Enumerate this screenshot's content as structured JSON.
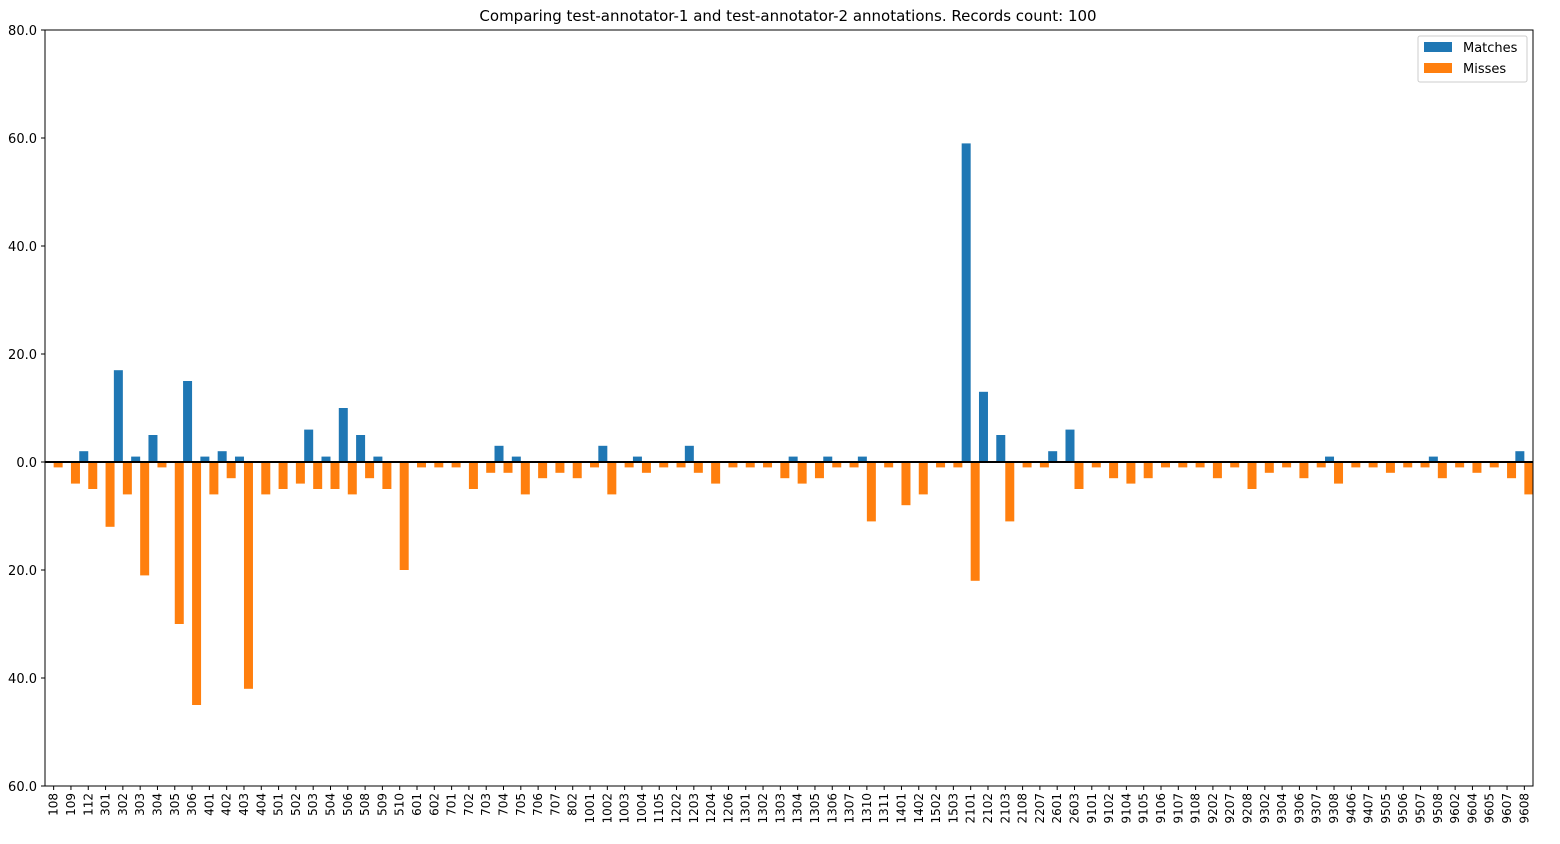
{
  "chart_data": {
    "type": "bar",
    "title": "Comparing test-annotator-1 and test-annotator-2 annotations. Records count: 100",
    "xlabel": "",
    "ylabel": "",
    "ylim": [
      -60,
      80
    ],
    "yticks": [
      80,
      60,
      40,
      20,
      0,
      -20,
      -40,
      -60
    ],
    "ytick_labels": [
      "80.0",
      "60.0",
      "40.0",
      "20.0",
      "0.0",
      "20.0",
      "40.0",
      "60.0"
    ],
    "legend_position": "top-right",
    "grid": false,
    "categories": [
      "108",
      "109",
      "112",
      "301",
      "302",
      "303",
      "304",
      "305",
      "306",
      "401",
      "402",
      "403",
      "404",
      "501",
      "502",
      "503",
      "504",
      "506",
      "508",
      "509",
      "510",
      "601",
      "602",
      "701",
      "702",
      "703",
      "704",
      "705",
      "706",
      "707",
      "802",
      "1001",
      "1002",
      "1003",
      "1004",
      "1105",
      "1202",
      "1203",
      "1204",
      "1206",
      "1301",
      "1302",
      "1303",
      "1304",
      "1305",
      "1306",
      "1307",
      "1310",
      "1311",
      "1401",
      "1402",
      "1502",
      "1503",
      "2101",
      "2102",
      "2103",
      "2108",
      "2207",
      "2601",
      "2603",
      "9101",
      "9102",
      "9104",
      "9105",
      "9106",
      "9107",
      "9108",
      "9202",
      "9207",
      "9208",
      "9302",
      "9304",
      "9306",
      "9307",
      "9308",
      "9406",
      "9407",
      "9505",
      "9506",
      "9507",
      "9508",
      "9602",
      "9604",
      "9605",
      "9607",
      "9608"
    ],
    "series": [
      {
        "name": "Matches",
        "color": "#1f77b4",
        "values": [
          0,
          0,
          2,
          0,
          17,
          1,
          5,
          0,
          15,
          1,
          2,
          1,
          0,
          0,
          0,
          6,
          1,
          10,
          5,
          1,
          0,
          0,
          0,
          0,
          0,
          0,
          3,
          1,
          0,
          0,
          0,
          0,
          3,
          0,
          1,
          0,
          0,
          3,
          0,
          0,
          0,
          0,
          0,
          1,
          0,
          1,
          0,
          1,
          0,
          0,
          0,
          0,
          0,
          59,
          13,
          5,
          0,
          0,
          2,
          6,
          0,
          0,
          0,
          0,
          0,
          0,
          0,
          0,
          0,
          0,
          0,
          0,
          0,
          0,
          1,
          0,
          0,
          0,
          0,
          0,
          1,
          0,
          0,
          0,
          0,
          2
        ]
      },
      {
        "name": "Misses",
        "color": "#ff7f0e",
        "values": [
          -1,
          -4,
          -5,
          -12,
          -6,
          -21,
          -1,
          -30,
          -45,
          -6,
          -3,
          -42,
          -6,
          -5,
          -4,
          -5,
          -5,
          -6,
          -3,
          -5,
          -20,
          -1,
          -1,
          -1,
          -5,
          -2,
          -2,
          -6,
          -3,
          -2,
          -3,
          -1,
          -6,
          -1,
          -2,
          -1,
          -1,
          -2,
          -4,
          -1,
          -1,
          -1,
          -3,
          -4,
          -3,
          -1,
          -1,
          -11,
          -1,
          -8,
          -6,
          -1,
          -1,
          -22,
          0,
          -11,
          -1,
          -1,
          0,
          -5,
          -1,
          -3,
          -4,
          -3,
          -1,
          -1,
          -1,
          -3,
          -1,
          -5,
          -2,
          -1,
          -3,
          -1,
          -4,
          -1,
          -1,
          -2,
          -1,
          -1,
          -3,
          -1,
          -2,
          -1,
          -3,
          -6
        ]
      }
    ]
  }
}
